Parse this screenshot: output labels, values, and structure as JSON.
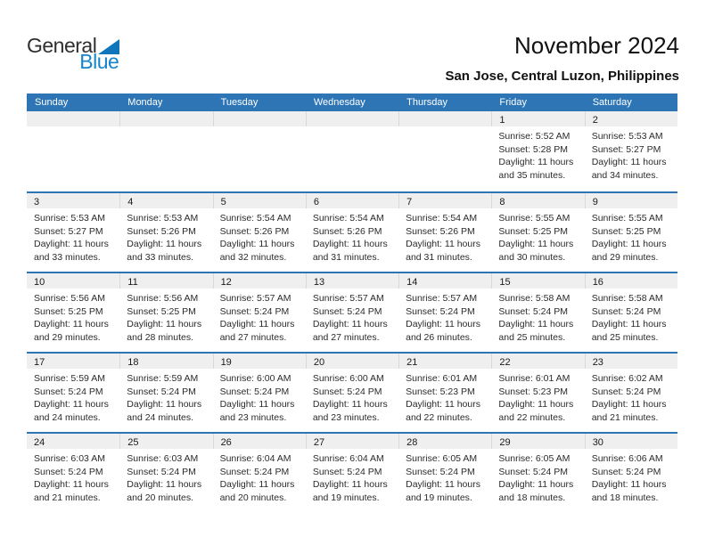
{
  "logo": {
    "part1": "General",
    "part2": "Blue"
  },
  "header": {
    "title": "November 2024",
    "subtitle": "San Jose, Central Luzon, Philippines"
  },
  "weekdays": [
    "Sunday",
    "Monday",
    "Tuesday",
    "Wednesday",
    "Thursday",
    "Friday",
    "Saturday"
  ],
  "colors": {
    "header_bg": "#2E75B5",
    "row_border": "#2E75B5",
    "band_bg": "#EFEFEF",
    "logo_blue": "#1585CC",
    "triangle_blue": "#0F76BC"
  },
  "weeks": [
    [
      null,
      null,
      null,
      null,
      null,
      {
        "day": "1",
        "lines": [
          "Sunrise: 5:52 AM",
          "Sunset: 5:28 PM",
          "Daylight: 11 hours",
          "and 35 minutes."
        ]
      },
      {
        "day": "2",
        "lines": [
          "Sunrise: 5:53 AM",
          "Sunset: 5:27 PM",
          "Daylight: 11 hours",
          "and 34 minutes."
        ]
      }
    ],
    [
      {
        "day": "3",
        "lines": [
          "Sunrise: 5:53 AM",
          "Sunset: 5:27 PM",
          "Daylight: 11 hours",
          "and 33 minutes."
        ]
      },
      {
        "day": "4",
        "lines": [
          "Sunrise: 5:53 AM",
          "Sunset: 5:26 PM",
          "Daylight: 11 hours",
          "and 33 minutes."
        ]
      },
      {
        "day": "5",
        "lines": [
          "Sunrise: 5:54 AM",
          "Sunset: 5:26 PM",
          "Daylight: 11 hours",
          "and 32 minutes."
        ]
      },
      {
        "day": "6",
        "lines": [
          "Sunrise: 5:54 AM",
          "Sunset: 5:26 PM",
          "Daylight: 11 hours",
          "and 31 minutes."
        ]
      },
      {
        "day": "7",
        "lines": [
          "Sunrise: 5:54 AM",
          "Sunset: 5:26 PM",
          "Daylight: 11 hours",
          "and 31 minutes."
        ]
      },
      {
        "day": "8",
        "lines": [
          "Sunrise: 5:55 AM",
          "Sunset: 5:25 PM",
          "Daylight: 11 hours",
          "and 30 minutes."
        ]
      },
      {
        "day": "9",
        "lines": [
          "Sunrise: 5:55 AM",
          "Sunset: 5:25 PM",
          "Daylight: 11 hours",
          "and 29 minutes."
        ]
      }
    ],
    [
      {
        "day": "10",
        "lines": [
          "Sunrise: 5:56 AM",
          "Sunset: 5:25 PM",
          "Daylight: 11 hours",
          "and 29 minutes."
        ]
      },
      {
        "day": "11",
        "lines": [
          "Sunrise: 5:56 AM",
          "Sunset: 5:25 PM",
          "Daylight: 11 hours",
          "and 28 minutes."
        ]
      },
      {
        "day": "12",
        "lines": [
          "Sunrise: 5:57 AM",
          "Sunset: 5:24 PM",
          "Daylight: 11 hours",
          "and 27 minutes."
        ]
      },
      {
        "day": "13",
        "lines": [
          "Sunrise: 5:57 AM",
          "Sunset: 5:24 PM",
          "Daylight: 11 hours",
          "and 27 minutes."
        ]
      },
      {
        "day": "14",
        "lines": [
          "Sunrise: 5:57 AM",
          "Sunset: 5:24 PM",
          "Daylight: 11 hours",
          "and 26 minutes."
        ]
      },
      {
        "day": "15",
        "lines": [
          "Sunrise: 5:58 AM",
          "Sunset: 5:24 PM",
          "Daylight: 11 hours",
          "and 25 minutes."
        ]
      },
      {
        "day": "16",
        "lines": [
          "Sunrise: 5:58 AM",
          "Sunset: 5:24 PM",
          "Daylight: 11 hours",
          "and 25 minutes."
        ]
      }
    ],
    [
      {
        "day": "17",
        "lines": [
          "Sunrise: 5:59 AM",
          "Sunset: 5:24 PM",
          "Daylight: 11 hours",
          "and 24 minutes."
        ]
      },
      {
        "day": "18",
        "lines": [
          "Sunrise: 5:59 AM",
          "Sunset: 5:24 PM",
          "Daylight: 11 hours",
          "and 24 minutes."
        ]
      },
      {
        "day": "19",
        "lines": [
          "Sunrise: 6:00 AM",
          "Sunset: 5:24 PM",
          "Daylight: 11 hours",
          "and 23 minutes."
        ]
      },
      {
        "day": "20",
        "lines": [
          "Sunrise: 6:00 AM",
          "Sunset: 5:24 PM",
          "Daylight: 11 hours",
          "and 23 minutes."
        ]
      },
      {
        "day": "21",
        "lines": [
          "Sunrise: 6:01 AM",
          "Sunset: 5:23 PM",
          "Daylight: 11 hours",
          "and 22 minutes."
        ]
      },
      {
        "day": "22",
        "lines": [
          "Sunrise: 6:01 AM",
          "Sunset: 5:23 PM",
          "Daylight: 11 hours",
          "and 22 minutes."
        ]
      },
      {
        "day": "23",
        "lines": [
          "Sunrise: 6:02 AM",
          "Sunset: 5:24 PM",
          "Daylight: 11 hours",
          "and 21 minutes."
        ]
      }
    ],
    [
      {
        "day": "24",
        "lines": [
          "Sunrise: 6:03 AM",
          "Sunset: 5:24 PM",
          "Daylight: 11 hours",
          "and 21 minutes."
        ]
      },
      {
        "day": "25",
        "lines": [
          "Sunrise: 6:03 AM",
          "Sunset: 5:24 PM",
          "Daylight: 11 hours",
          "and 20 minutes."
        ]
      },
      {
        "day": "26",
        "lines": [
          "Sunrise: 6:04 AM",
          "Sunset: 5:24 PM",
          "Daylight: 11 hours",
          "and 20 minutes."
        ]
      },
      {
        "day": "27",
        "lines": [
          "Sunrise: 6:04 AM",
          "Sunset: 5:24 PM",
          "Daylight: 11 hours",
          "and 19 minutes."
        ]
      },
      {
        "day": "28",
        "lines": [
          "Sunrise: 6:05 AM",
          "Sunset: 5:24 PM",
          "Daylight: 11 hours",
          "and 19 minutes."
        ]
      },
      {
        "day": "29",
        "lines": [
          "Sunrise: 6:05 AM",
          "Sunset: 5:24 PM",
          "Daylight: 11 hours",
          "and 18 minutes."
        ]
      },
      {
        "day": "30",
        "lines": [
          "Sunrise: 6:06 AM",
          "Sunset: 5:24 PM",
          "Daylight: 11 hours",
          "and 18 minutes."
        ]
      }
    ]
  ]
}
